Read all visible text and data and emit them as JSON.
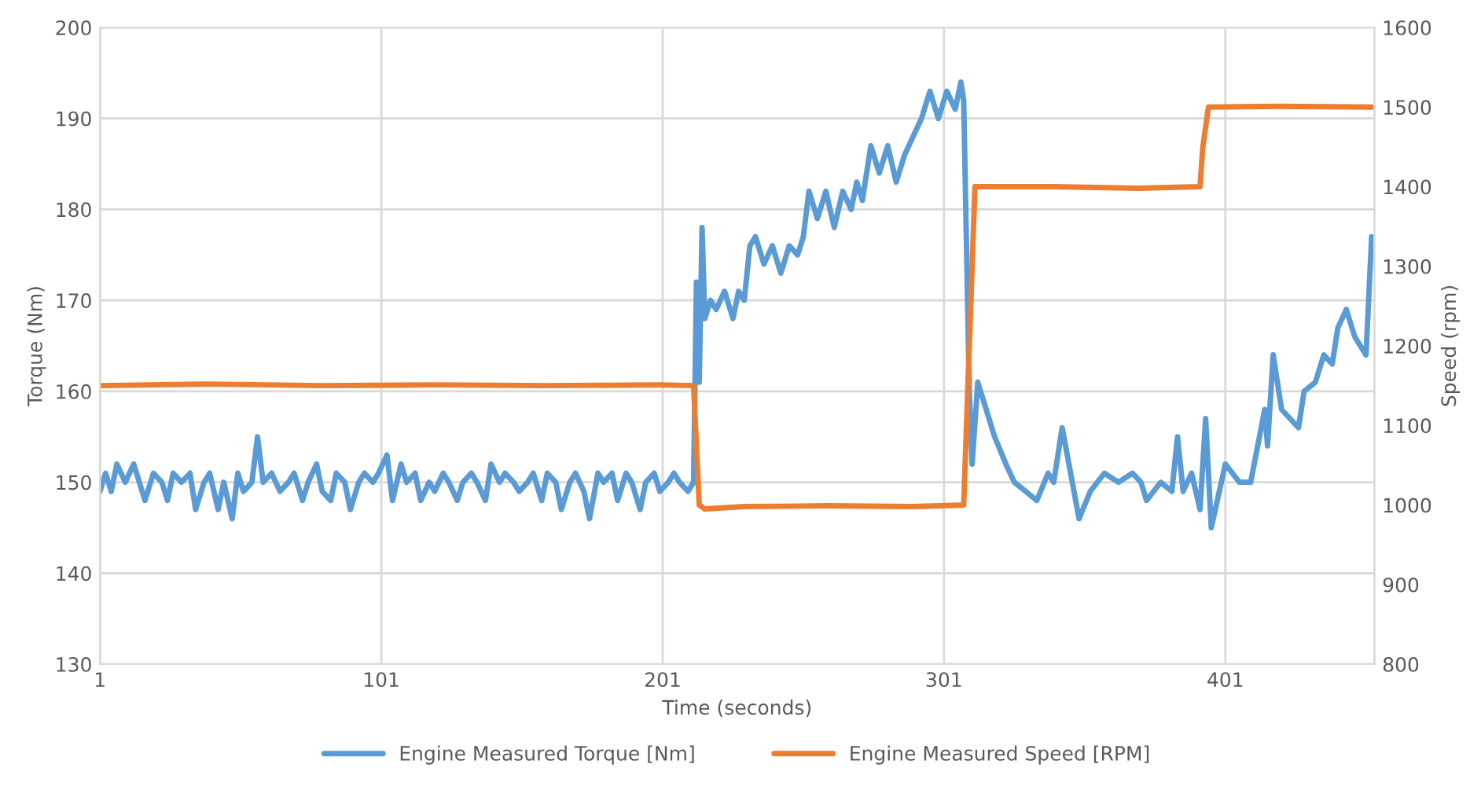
{
  "chart_data": {
    "type": "line",
    "xlabel": "Time (seconds)",
    "ylabel": "Torque (Nm)",
    "y2label": "Speed (rpm)",
    "xlim": [
      1,
      454
    ],
    "xticks": [
      1,
      101,
      201,
      301,
      401
    ],
    "ylim": [
      130,
      200
    ],
    "yticks": [
      130,
      140,
      150,
      160,
      170,
      180,
      190,
      200
    ],
    "y2lim": [
      800,
      1600
    ],
    "y2ticks": [
      800,
      900,
      1000,
      1100,
      1200,
      1300,
      1400,
      1500,
      1600
    ],
    "grid": true,
    "legend": "bottom",
    "marker": "none",
    "line_style": "solid",
    "series": [
      {
        "name": "Engine Measured Torque [Nm]",
        "color": "#5b9bd5",
        "x": [
          1,
          3,
          5,
          7,
          10,
          13,
          15,
          17,
          20,
          23,
          25,
          27,
          30,
          33,
          35,
          38,
          40,
          43,
          45,
          48,
          50,
          52,
          55,
          57,
          59,
          62,
          65,
          68,
          70,
          73,
          75,
          78,
          80,
          83,
          85,
          88,
          90,
          93,
          95,
          98,
          100,
          103,
          105,
          108,
          110,
          113,
          115,
          118,
          120,
          123,
          125,
          128,
          130,
          133,
          135,
          138,
          140,
          143,
          145,
          148,
          150,
          153,
          155,
          158,
          160,
          163,
          165,
          168,
          170,
          173,
          175,
          178,
          180,
          183,
          185,
          188,
          190,
          193,
          195,
          198,
          200,
          203,
          205,
          207,
          210,
          212,
          213,
          214,
          215,
          216,
          218,
          220,
          223,
          226,
          228,
          230,
          232,
          234,
          237,
          240,
          243,
          246,
          249,
          251,
          253,
          256,
          259,
          262,
          265,
          268,
          270,
          272,
          275,
          278,
          281,
          284,
          287,
          290,
          293,
          296,
          299,
          302,
          305,
          307,
          308,
          310,
          311,
          313,
          316,
          319,
          323,
          326,
          330,
          334,
          338,
          340,
          343,
          349,
          353,
          358,
          363,
          368,
          371,
          373,
          378,
          382,
          384,
          386,
          389,
          392,
          394,
          396,
          401,
          406,
          410,
          415,
          416,
          418,
          421,
          427,
          429,
          433,
          436,
          439,
          441,
          444,
          447,
          451,
          453
        ],
        "values": [
          149,
          151,
          149,
          152,
          150,
          152,
          150,
          148,
          151,
          150,
          148,
          151,
          150,
          151,
          147,
          150,
          151,
          147,
          150,
          146,
          151,
          149,
          150,
          155,
          150,
          151,
          149,
          150,
          151,
          148,
          150,
          152,
          149,
          148,
          151,
          150,
          147,
          150,
          151,
          150,
          151,
          153,
          148,
          152,
          150,
          151,
          148,
          150,
          149,
          151,
          150,
          148,
          150,
          151,
          150,
          148,
          152,
          150,
          151,
          150,
          149,
          150,
          151,
          148,
          151,
          150,
          147,
          150,
          151,
          149,
          146,
          151,
          150,
          151,
          148,
          151,
          150,
          147,
          150,
          151,
          149,
          150,
          151,
          150,
          149,
          150,
          172,
          161,
          178,
          168,
          170,
          169,
          171,
          168,
          171,
          170,
          176,
          177,
          174,
          176,
          173,
          176,
          175,
          177,
          182,
          179,
          182,
          178,
          182,
          180,
          183,
          181,
          187,
          184,
          187,
          183,
          186,
          188,
          190,
          193,
          190,
          193,
          191,
          194,
          192,
          160,
          152,
          161,
          158,
          155,
          152,
          150,
          149,
          148,
          151,
          150,
          156,
          146,
          149,
          151,
          150,
          151,
          150,
          148,
          150,
          149,
          155,
          149,
          151,
          147,
          157,
          145,
          152,
          150,
          150,
          158,
          154,
          164,
          158,
          156,
          160,
          161,
          164,
          163,
          167,
          169,
          166,
          164,
          177
        ]
      },
      {
        "name": "Engine Measured Speed [RPM]",
        "color": "#ed7d31",
        "axis": "y2",
        "x": [
          1,
          40,
          80,
          120,
          160,
          200,
          212,
          214,
          216,
          230,
          260,
          290,
          308,
          310,
          312,
          340,
          370,
          392,
          393,
          395,
          420,
          453
        ],
        "values": [
          1150,
          1152,
          1150,
          1151,
          1150,
          1151,
          1150,
          1000,
          995,
          998,
          999,
          998,
          1000,
          1200,
          1400,
          1400,
          1398,
          1400,
          1450,
          1500,
          1501,
          1500
        ]
      }
    ]
  }
}
